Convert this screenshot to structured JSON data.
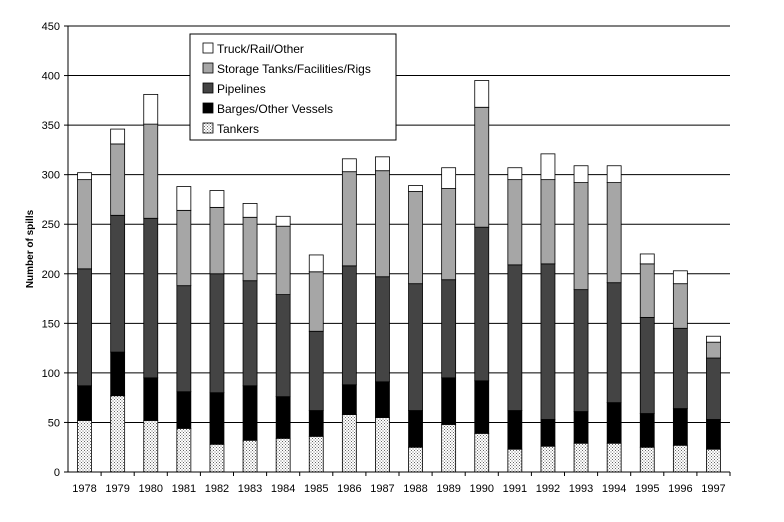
{
  "chart_data": {
    "type": "bar",
    "stacked": true,
    "title": "",
    "xlabel": "",
    "ylabel": "Number of spills",
    "ylim": [
      0,
      450
    ],
    "yticks": [
      0,
      50,
      100,
      150,
      200,
      250,
      300,
      350,
      400,
      450
    ],
    "grid": true,
    "legend_position": "top-left",
    "categories": [
      "1978",
      "1979",
      "1980",
      "1981",
      "1982",
      "1983",
      "1984",
      "1985",
      "1986",
      "1987",
      "1988",
      "1989",
      "1990",
      "1991",
      "1992",
      "1993",
      "1994",
      "1995",
      "1996",
      "1997"
    ],
    "series": [
      {
        "name": "Tankers",
        "color": "#ffffff",
        "pattern": "dots",
        "values": [
          52,
          77,
          52,
          44,
          28,
          32,
          34,
          36,
          58,
          55,
          25,
          48,
          39,
          23,
          26,
          29,
          29,
          25,
          27,
          23
        ]
      },
      {
        "name": "Barges/Other Vessels",
        "color": "#000000",
        "values": [
          35,
          44,
          43,
          37,
          52,
          55,
          42,
          26,
          30,
          36,
          37,
          47,
          53,
          39,
          27,
          32,
          41,
          34,
          37,
          30
        ]
      },
      {
        "name": "Pipelines",
        "color": "#444444",
        "values": [
          118,
          138,
          161,
          107,
          120,
          106,
          103,
          80,
          120,
          106,
          128,
          99,
          155,
          147,
          157,
          123,
          121,
          97,
          81,
          62
        ]
      },
      {
        "name": "Storage Tanks/Facilities/Rigs",
        "color": "#a6a6a6",
        "values": [
          90,
          72,
          95,
          76,
          67,
          64,
          69,
          60,
          95,
          107,
          93,
          92,
          121,
          86,
          85,
          108,
          101,
          54,
          45,
          16
        ]
      },
      {
        "name": "Truck/Rail/Other",
        "color": "#ffffff",
        "values": [
          7,
          15,
          30,
          24,
          17,
          14,
          10,
          17,
          13,
          14,
          6,
          21,
          27,
          12,
          26,
          17,
          17,
          10,
          13,
          6
        ]
      }
    ],
    "legend_order": [
      "Truck/Rail/Other",
      "Storage Tanks/Facilities/Rigs",
      "Pipelines",
      "Barges/Other Vessels",
      "Tankers"
    ]
  }
}
